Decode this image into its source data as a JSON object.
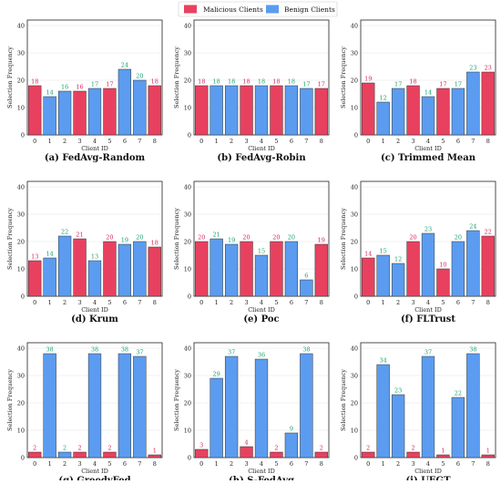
{
  "legend": {
    "items": [
      {
        "name": "Malicious Clients",
        "color": "#e8415f"
      },
      {
        "name": "Benign Clients",
        "color": "#5b9cf0"
      }
    ],
    "placement": "top-center"
  },
  "colors": {
    "malicious": "#e8415f",
    "benign": "#5b9cf0",
    "malicious_label": "#d6245a",
    "benign_label": "#19a06e"
  },
  "chart_data": [
    {
      "type": "bar",
      "title": "(a) FedAvg-Random",
      "xlabel": "Client ID",
      "ylabel": "Selection Frequency",
      "ylim": [
        0,
        42
      ],
      "yticks": [
        0,
        10,
        20,
        30,
        40
      ],
      "grid": true,
      "categories": [
        "0",
        "1",
        "2",
        "3",
        "4",
        "5",
        "6",
        "7",
        "8"
      ],
      "values": [
        18,
        14,
        16,
        16,
        17,
        17,
        24,
        20,
        18
      ],
      "malicious": [
        true,
        false,
        false,
        true,
        false,
        true,
        false,
        false,
        true
      ]
    },
    {
      "type": "bar",
      "title": "(b) FedAvg-Robin",
      "xlabel": "Client ID",
      "ylabel": "Selection Frequency",
      "ylim": [
        0,
        42
      ],
      "yticks": [
        0,
        10,
        20,
        30,
        40
      ],
      "grid": true,
      "categories": [
        "0",
        "1",
        "2",
        "3",
        "4",
        "5",
        "6",
        "7",
        "8"
      ],
      "values": [
        18,
        18,
        18,
        18,
        18,
        18,
        18,
        17,
        17
      ],
      "malicious": [
        true,
        false,
        false,
        true,
        false,
        true,
        false,
        false,
        true
      ]
    },
    {
      "type": "bar",
      "title": "(c) Trimmed Mean",
      "xlabel": "Client ID",
      "ylabel": "Selection Frequency",
      "ylim": [
        0,
        42
      ],
      "yticks": [
        0,
        10,
        20,
        30,
        40
      ],
      "grid": true,
      "categories": [
        "0",
        "1",
        "2",
        "3",
        "4",
        "5",
        "6",
        "7",
        "8"
      ],
      "values": [
        19,
        12,
        17,
        18,
        14,
        17,
        17,
        23,
        23
      ],
      "malicious": [
        true,
        false,
        false,
        true,
        false,
        true,
        false,
        false,
        true
      ]
    },
    {
      "type": "bar",
      "title": "(d) Krum",
      "xlabel": "Client ID",
      "ylabel": "Selection Frequency",
      "ylim": [
        0,
        42
      ],
      "yticks": [
        0,
        10,
        20,
        30,
        40
      ],
      "grid": true,
      "categories": [
        "0",
        "1",
        "2",
        "3",
        "4",
        "5",
        "6",
        "7",
        "8"
      ],
      "values": [
        13,
        14,
        22,
        21,
        13,
        20,
        19,
        20,
        18
      ],
      "malicious": [
        true,
        false,
        false,
        true,
        false,
        true,
        false,
        false,
        true
      ]
    },
    {
      "type": "bar",
      "title": "(e) Poc",
      "xlabel": "Client ID",
      "ylabel": "Selection Frequency",
      "ylim": [
        0,
        42
      ],
      "yticks": [
        0,
        10,
        20,
        30,
        40
      ],
      "grid": true,
      "categories": [
        "0",
        "1",
        "2",
        "3",
        "4",
        "5",
        "6",
        "7",
        "8"
      ],
      "values": [
        20,
        21,
        19,
        20,
        15,
        20,
        20,
        6,
        19
      ],
      "malicious": [
        true,
        false,
        false,
        true,
        false,
        true,
        false,
        false,
        true
      ]
    },
    {
      "type": "bar",
      "title": "(f) FLTrust",
      "xlabel": "Client ID",
      "ylabel": "Selection Frequency",
      "ylim": [
        0,
        42
      ],
      "yticks": [
        0,
        10,
        20,
        30,
        40
      ],
      "grid": true,
      "categories": [
        "0",
        "1",
        "2",
        "3",
        "4",
        "5",
        "6",
        "7",
        "8"
      ],
      "values": [
        14,
        15,
        12,
        20,
        23,
        10,
        20,
        24,
        22
      ],
      "malicious": [
        true,
        false,
        false,
        true,
        false,
        true,
        false,
        false,
        true
      ]
    },
    {
      "type": "bar",
      "title": "(g) GreedyFed",
      "xlabel": "Client ID",
      "ylabel": "Selection Frequency",
      "ylim": [
        0,
        42
      ],
      "yticks": [
        0,
        10,
        20,
        30,
        40
      ],
      "grid": true,
      "categories": [
        "0",
        "1",
        "2",
        "3",
        "4",
        "5",
        "6",
        "7",
        "8"
      ],
      "values": [
        2,
        38,
        2,
        2,
        38,
        2,
        38,
        37,
        1
      ],
      "malicious": [
        true,
        false,
        false,
        true,
        false,
        true,
        false,
        false,
        true
      ]
    },
    {
      "type": "bar",
      "title": "(h) S-FedAvg",
      "xlabel": "Client ID",
      "ylabel": "Selection Frequency",
      "ylim": [
        0,
        42
      ],
      "yticks": [
        0,
        10,
        20,
        30,
        40
      ],
      "grid": true,
      "categories": [
        "0",
        "1",
        "2",
        "3",
        "4",
        "5",
        "6",
        "7",
        "8"
      ],
      "values": [
        3,
        29,
        37,
        4,
        36,
        2,
        9,
        38,
        2
      ],
      "malicious": [
        true,
        false,
        false,
        true,
        false,
        true,
        false,
        false,
        true
      ]
    },
    {
      "type": "bar",
      "title": "(i) UEGT",
      "xlabel": "Client ID",
      "ylabel": "Selection Frequency",
      "ylim": [
        0,
        42
      ],
      "yticks": [
        0,
        10,
        20,
        30,
        40
      ],
      "grid": true,
      "categories": [
        "0",
        "1",
        "2",
        "3",
        "4",
        "5",
        "6",
        "7",
        "8"
      ],
      "values": [
        2,
        34,
        23,
        2,
        37,
        1,
        22,
        38,
        1
      ],
      "malicious": [
        true,
        false,
        false,
        true,
        false,
        true,
        false,
        false,
        true
      ]
    }
  ]
}
